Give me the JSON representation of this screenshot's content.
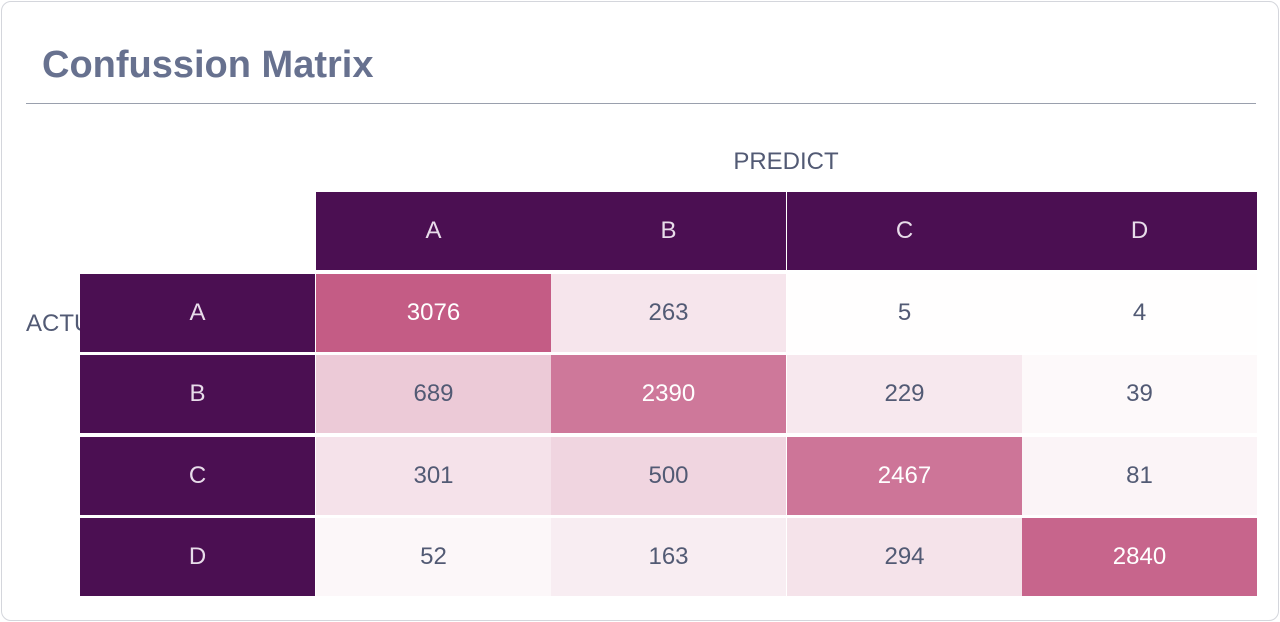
{
  "title": "Confussion Matrix",
  "chart_data": {
    "type": "heatmap",
    "title": "Confussion Matrix",
    "xlabel": "PREDICT",
    "ylabel": "ACTUAL",
    "x_categories": [
      "A",
      "B",
      "C",
      "D"
    ],
    "y_categories": [
      "A",
      "B",
      "C",
      "D"
    ],
    "values": [
      [
        3076,
        263,
        5,
        4
      ],
      [
        689,
        2390,
        229,
        39
      ],
      [
        301,
        500,
        2467,
        81
      ],
      [
        52,
        163,
        294,
        2840
      ]
    ],
    "colorscale": {
      "low": "#ffffff",
      "high": "#c45c85"
    },
    "header_color": "#4b0f52"
  }
}
